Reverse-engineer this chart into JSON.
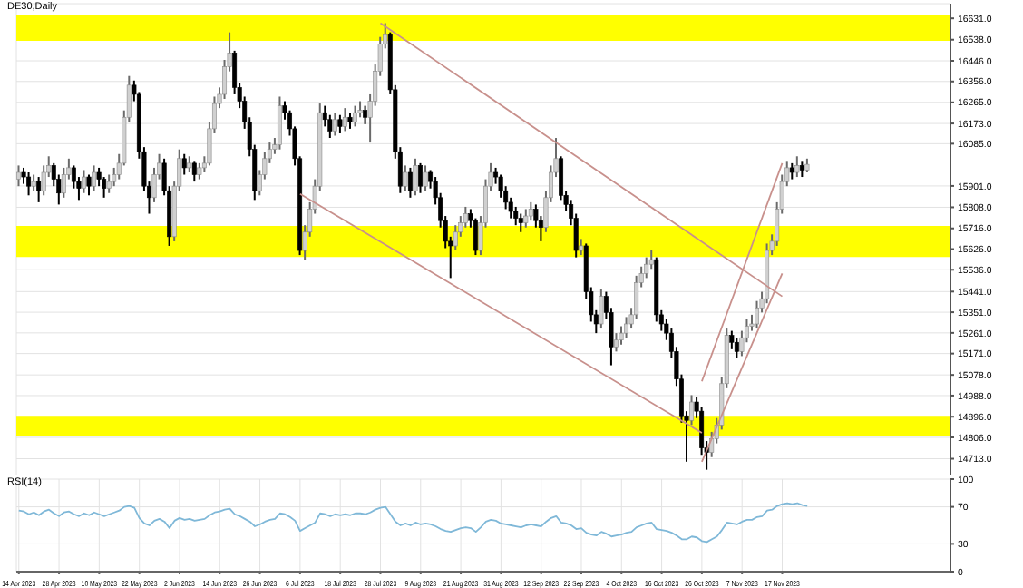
{
  "chart_data": [
    {
      "type": "candlestick",
      "title": "DE30,Daily",
      "categories": [
        "14 Apr 2023",
        null,
        null,
        null,
        null,
        null,
        null,
        null,
        "28 Apr 2023",
        null,
        null,
        null,
        null,
        null,
        null,
        null,
        "10 May 2023",
        null,
        null,
        null,
        null,
        null,
        null,
        null,
        "22 May 2023",
        null,
        null,
        null,
        null,
        null,
        null,
        null,
        "2 Jun 2023",
        null,
        null,
        null,
        null,
        null,
        null,
        null,
        "14 Jun 2023",
        null,
        null,
        null,
        null,
        null,
        null,
        null,
        "26 Jun 2023",
        null,
        null,
        null,
        null,
        null,
        null,
        null,
        "6 Jul 2023",
        null,
        null,
        null,
        null,
        null,
        null,
        null,
        "18 Jul 2023",
        null,
        null,
        null,
        null,
        null,
        null,
        null,
        "28 Jul 2023",
        null,
        null,
        null,
        null,
        null,
        null,
        null,
        "9 Aug 2023",
        null,
        null,
        null,
        null,
        null,
        null,
        null,
        "21 Aug 2023",
        null,
        null,
        null,
        null,
        null,
        null,
        null,
        "31 Aug 2023",
        null,
        null,
        null,
        null,
        null,
        null,
        null,
        "12 Sep 2023",
        null,
        null,
        null,
        null,
        null,
        null,
        null,
        "22 Sep 2023",
        null,
        null,
        null,
        null,
        null,
        null,
        null,
        "4 Oct 2023",
        null,
        null,
        null,
        null,
        null,
        null,
        null,
        "16 Oct 2023",
        null,
        null,
        null,
        null,
        null,
        null,
        null,
        "26 Oct 2023",
        null,
        null,
        null,
        null,
        null,
        null,
        null,
        "7 Nov 2023",
        null,
        null,
        null,
        null,
        null,
        null,
        null,
        "17 Nov 2023",
        null,
        null,
        null,
        null,
        null,
        null,
        null,
        null,
        null,
        null,
        null,
        null,
        null,
        null,
        null,
        null,
        null,
        null,
        null,
        null,
        null,
        null,
        null,
        null,
        null,
        null,
        null,
        null,
        null,
        null,
        null,
        null,
        null
      ],
      "ohlc": [
        [
          15930,
          15990,
          15900,
          15960
        ],
        [
          15960,
          15980,
          15910,
          15940
        ],
        [
          15940,
          15960,
          15860,
          15900
        ],
        [
          15900,
          15950,
          15880,
          15920
        ],
        [
          15920,
          15940,
          15830,
          15880
        ],
        [
          15880,
          15990,
          15860,
          15960
        ],
        [
          15960,
          16030,
          15940,
          15990
        ],
        [
          15990,
          16000,
          15900,
          15930
        ],
        [
          15930,
          15950,
          15820,
          15870
        ],
        [
          15870,
          15980,
          15850,
          15950
        ],
        [
          15950,
          16020,
          15930,
          15980
        ],
        [
          15980,
          15990,
          15890,
          15920
        ],
        [
          15920,
          15940,
          15840,
          15890
        ],
        [
          15890,
          15970,
          15870,
          15940
        ],
        [
          15940,
          15950,
          15860,
          15900
        ],
        [
          15900,
          15990,
          15880,
          15960
        ],
        [
          15960,
          15980,
          15900,
          15930
        ],
        [
          15930,
          15940,
          15850,
          15890
        ],
        [
          15890,
          15950,
          15870,
          15920
        ],
        [
          15920,
          15980,
          15900,
          15950
        ],
        [
          15950,
          16040,
          15930,
          16000
        ],
        [
          16000,
          16230,
          15990,
          16200
        ],
        [
          16200,
          16380,
          16180,
          16340
        ],
        [
          16340,
          16360,
          16270,
          16300
        ],
        [
          16300,
          16310,
          16020,
          16050
        ],
        [
          16050,
          16070,
          15880,
          15900
        ],
        [
          15900,
          15920,
          15780,
          15850
        ],
        [
          15850,
          15980,
          15830,
          15950
        ],
        [
          15950,
          16040,
          15930,
          16000
        ],
        [
          16000,
          16020,
          15860,
          15880
        ],
        [
          15880,
          15900,
          15640,
          15680
        ],
        [
          15680,
          15920,
          15660,
          15900
        ],
        [
          15900,
          16060,
          15880,
          16020
        ],
        [
          16020,
          16040,
          15950,
          15980
        ],
        [
          15980,
          16030,
          15960,
          16000
        ],
        [
          16000,
          16010,
          15920,
          15950
        ],
        [
          15950,
          16000,
          15930,
          15980
        ],
        [
          15980,
          16030,
          15960,
          16000
        ],
        [
          16000,
          16180,
          15990,
          16150
        ],
        [
          16150,
          16290,
          16130,
          16260
        ],
        [
          16260,
          16330,
          16240,
          16300
        ],
        [
          16300,
          16450,
          16280,
          16420
        ],
        [
          16420,
          16570,
          16400,
          16480
        ],
        [
          16480,
          16490,
          16300,
          16330
        ],
        [
          16330,
          16350,
          16240,
          16270
        ],
        [
          16270,
          16290,
          16150,
          16180
        ],
        [
          16180,
          16200,
          16030,
          16060
        ],
        [
          16060,
          16080,
          15840,
          15880
        ],
        [
          15880,
          15970,
          15860,
          15950
        ],
        [
          15950,
          16050,
          15930,
          16020
        ],
        [
          16020,
          16090,
          16000,
          16060
        ],
        [
          16060,
          16110,
          16040,
          16080
        ],
        [
          16080,
          16290,
          16060,
          16250
        ],
        [
          16250,
          16270,
          16190,
          16220
        ],
        [
          16220,
          16230,
          16120,
          16150
        ],
        [
          16150,
          16160,
          15990,
          16020
        ],
        [
          16020,
          16030,
          15600,
          15620
        ],
        [
          15620,
          15730,
          15580,
          15700
        ],
        [
          15700,
          15830,
          15680,
          15800
        ],
        [
          15800,
          15930,
          15780,
          15900
        ],
        [
          15900,
          16260,
          15880,
          16220
        ],
        [
          16220,
          16250,
          16160,
          16190
        ],
        [
          16190,
          16210,
          16110,
          16140
        ],
        [
          16140,
          16220,
          16120,
          16190
        ],
        [
          16190,
          16210,
          16130,
          16160
        ],
        [
          16160,
          16240,
          16140,
          16200
        ],
        [
          16200,
          16220,
          16150,
          16180
        ],
        [
          16180,
          16250,
          16160,
          16220
        ],
        [
          16220,
          16270,
          16200,
          16230
        ],
        [
          16230,
          16250,
          16170,
          16200
        ],
        [
          16200,
          16300,
          16090,
          16270
        ],
        [
          16270,
          16430,
          16250,
          16400
        ],
        [
          16400,
          16550,
          16380,
          16520
        ],
        [
          16520,
          16610,
          16500,
          16560
        ],
        [
          16560,
          16570,
          16300,
          16320
        ],
        [
          16320,
          16340,
          16020,
          16050
        ],
        [
          16050,
          16070,
          15870,
          15900
        ],
        [
          15900,
          15990,
          15880,
          15960
        ],
        [
          15960,
          15980,
          15850,
          15880
        ],
        [
          15880,
          16020,
          15860,
          15990
        ],
        [
          15990,
          16000,
          15870,
          15900
        ],
        [
          15900,
          15990,
          15880,
          15960
        ],
        [
          15960,
          15970,
          15890,
          15920
        ],
        [
          15920,
          15940,
          15820,
          15850
        ],
        [
          15850,
          15870,
          15720,
          15750
        ],
        [
          15750,
          15770,
          15630,
          15660
        ],
        [
          15660,
          15680,
          15500,
          15640
        ],
        [
          15640,
          15730,
          15620,
          15700
        ],
        [
          15700,
          15770,
          15680,
          15740
        ],
        [
          15740,
          15810,
          15720,
          15780
        ],
        [
          15780,
          15800,
          15720,
          15750
        ],
        [
          15750,
          15760,
          15600,
          15620
        ],
        [
          15620,
          15770,
          15600,
          15740
        ],
        [
          15740,
          15930,
          15720,
          15900
        ],
        [
          15900,
          16000,
          15880,
          15960
        ],
        [
          15960,
          15980,
          15910,
          15940
        ],
        [
          15940,
          15950,
          15850,
          15880
        ],
        [
          15880,
          15900,
          15800,
          15830
        ],
        [
          15830,
          15850,
          15760,
          15790
        ],
        [
          15790,
          15810,
          15730,
          15760
        ],
        [
          15760,
          15780,
          15700,
          15740
        ],
        [
          15740,
          15800,
          15720,
          15770
        ],
        [
          15770,
          15830,
          15750,
          15800
        ],
        [
          15800,
          15820,
          15720,
          15750
        ],
        [
          15750,
          15770,
          15660,
          15720
        ],
        [
          15720,
          15880,
          15700,
          15850
        ],
        [
          15850,
          15990,
          15830,
          15960
        ],
        [
          15960,
          16110,
          15940,
          16020
        ],
        [
          16020,
          16030,
          15840,
          15860
        ],
        [
          15860,
          15880,
          15790,
          15820
        ],
        [
          15820,
          15840,
          15730,
          15760
        ],
        [
          15760,
          15780,
          15590,
          15620
        ],
        [
          15620,
          15670,
          15600,
          15640
        ],
        [
          15640,
          15650,
          15410,
          15440
        ],
        [
          15440,
          15460,
          15310,
          15340
        ],
        [
          15340,
          15360,
          15260,
          15300
        ],
        [
          15300,
          15450,
          15280,
          15420
        ],
        [
          15420,
          15440,
          15320,
          15350
        ],
        [
          15350,
          15370,
          15120,
          15200
        ],
        [
          15200,
          15260,
          15180,
          15230
        ],
        [
          15230,
          15290,
          15210,
          15260
        ],
        [
          15260,
          15330,
          15240,
          15300
        ],
        [
          15300,
          15370,
          15280,
          15340
        ],
        [
          15340,
          15510,
          15320,
          15480
        ],
        [
          15480,
          15550,
          15460,
          15520
        ],
        [
          15520,
          15590,
          15500,
          15560
        ],
        [
          15560,
          15620,
          15540,
          15580
        ],
        [
          15580,
          15590,
          15310,
          15340
        ],
        [
          15340,
          15360,
          15270,
          15300
        ],
        [
          15300,
          15320,
          15230,
          15260
        ],
        [
          15260,
          15280,
          15150,
          15180
        ],
        [
          15180,
          15200,
          15030,
          15060
        ],
        [
          15060,
          15080,
          14870,
          14900
        ],
        [
          14900,
          14920,
          14700,
          14880
        ],
        [
          14880,
          14990,
          14860,
          14960
        ],
        [
          14960,
          14980,
          14890,
          14920
        ],
        [
          14920,
          14940,
          14730,
          14760
        ],
        [
          14760,
          14790,
          14665,
          14740
        ],
        [
          14740,
          14830,
          14720,
          14800
        ],
        [
          14800,
          14890,
          14780,
          14860
        ],
        [
          14860,
          15070,
          14840,
          15040
        ],
        [
          15040,
          15280,
          15020,
          15250
        ],
        [
          15250,
          15270,
          15190,
          15220
        ],
        [
          15220,
          15240,
          15150,
          15180
        ],
        [
          15180,
          15270,
          15160,
          15240
        ],
        [
          15240,
          15320,
          15220,
          15290
        ],
        [
          15290,
          15340,
          15270,
          15300
        ],
        [
          15300,
          15400,
          15280,
          15370
        ],
        [
          15370,
          15440,
          15350,
          15410
        ],
        [
          15410,
          15650,
          15390,
          15620
        ],
        [
          15620,
          15690,
          15600,
          15660
        ],
        [
          15660,
          15830,
          15640,
          15800
        ],
        [
          15800,
          15950,
          15780,
          15920
        ],
        [
          15920,
          16010,
          15900,
          15980
        ],
        [
          15980,
          16000,
          15930,
          15960
        ],
        [
          15960,
          16030,
          15940,
          15990
        ],
        [
          15990,
          16010,
          15940,
          15970
        ],
        [
          15970,
          16020,
          15960,
          15995
        ],
        null,
        null,
        null,
        null,
        null,
        null,
        null,
        null,
        null,
        null,
        null,
        null,
        null,
        null,
        null,
        null,
        null,
        null,
        null,
        null,
        null,
        null,
        null,
        null,
        null,
        null,
        null,
        null
      ],
      "series": [
        {
          "type": "line",
          "color": "#c8908c",
          "x": [
            "28 Jul 2023",
            "17 Nov 2023"
          ],
          "values": [
            16610,
            15420
          ]
        },
        {
          "type": "line",
          "color": "#c8908c",
          "x": [
            "6 Jul 2023",
            "26 Oct 2023"
          ],
          "values": [
            15866,
            14826
          ]
        },
        {
          "type": "line",
          "color": "#c8908c",
          "x": [
            "26 Oct 2023",
            "17 Nov 2023"
          ],
          "values": [
            15050,
            16000
          ]
        },
        {
          "type": "line",
          "color": "#c8908c",
          "x": [
            "26 Oct 2023",
            "17 Nov 2023"
          ],
          "values": [
            14700,
            15520
          ]
        }
      ],
      "bands": [
        {
          "axis": "y",
          "from": 16533,
          "to": 16648,
          "color": "#ffff00"
        },
        {
          "axis": "y",
          "from": 15591,
          "to": 15727,
          "color": "#ffff00"
        },
        {
          "axis": "y",
          "from": 14814,
          "to": 14900,
          "color": "#ffff00"
        }
      ],
      "ylim": [
        14640,
        16695
      ],
      "yticks": [
        {
          "value": 14713,
          "label": "14713.0"
        },
        {
          "value": 14806,
          "label": "14806.0"
        },
        {
          "value": 14896,
          "label": "14896.0"
        },
        {
          "value": 14988,
          "label": "14988.0"
        },
        {
          "value": 15078,
          "label": "15078.0"
        },
        {
          "value": 15171,
          "label": "15171.0"
        },
        {
          "value": 15261,
          "label": "15261.0"
        },
        {
          "value": 15351,
          "label": "15351.0"
        },
        {
          "value": 15441,
          "label": "15441.0"
        },
        {
          "value": 15536,
          "label": "15536.0"
        },
        {
          "value": 15626,
          "label": "15626.0"
        },
        {
          "value": 15716,
          "label": "15716.0"
        },
        {
          "value": 15808,
          "label": "15808.0"
        },
        {
          "value": 15901,
          "label": "15901.0"
        },
        {
          "value": 16085,
          "label": "16085.0"
        },
        {
          "value": 16173,
          "label": "16173.0"
        },
        {
          "value": 16265,
          "label": "16265.0"
        },
        {
          "value": 16356,
          "label": "16356.0"
        },
        {
          "value": 16446,
          "label": "16446.0"
        },
        {
          "value": 16538,
          "label": "16538.0"
        },
        {
          "value": 16631,
          "label": "16631.0"
        }
      ],
      "grid": true,
      "tick_labels": "y"
    },
    {
      "type": "line",
      "title": "RSI(14)",
      "categories": [
        "14 Apr 2023",
        null,
        null,
        null,
        null,
        null,
        null,
        null,
        "28 Apr 2023",
        null,
        null,
        null,
        null,
        null,
        null,
        null,
        "10 May 2023",
        null,
        null,
        null,
        null,
        null,
        null,
        null,
        "22 May 2023",
        null,
        null,
        null,
        null,
        null,
        null,
        null,
        "2 Jun 2023",
        null,
        null,
        null,
        null,
        null,
        null,
        null,
        "14 Jun 2023",
        null,
        null,
        null,
        null,
        null,
        null,
        null,
        "26 Jun 2023",
        null,
        null,
        null,
        null,
        null,
        null,
        null,
        "6 Jul 2023",
        null,
        null,
        null,
        null,
        null,
        null,
        null,
        "18 Jul 2023",
        null,
        null,
        null,
        null,
        null,
        null,
        null,
        "28 Jul 2023",
        null,
        null,
        null,
        null,
        null,
        null,
        null,
        "9 Aug 2023",
        null,
        null,
        null,
        null,
        null,
        null,
        null,
        "21 Aug 2023",
        null,
        null,
        null,
        null,
        null,
        null,
        null,
        "31 Aug 2023",
        null,
        null,
        null,
        null,
        null,
        null,
        null,
        "12 Sep 2023",
        null,
        null,
        null,
        null,
        null,
        null,
        null,
        "22 Sep 2023",
        null,
        null,
        null,
        null,
        null,
        null,
        null,
        "4 Oct 2023",
        null,
        null,
        null,
        null,
        null,
        null,
        null,
        "16 Oct 2023",
        null,
        null,
        null,
        null,
        null,
        null,
        null,
        "26 Oct 2023",
        null,
        null,
        null,
        null,
        null,
        null,
        null,
        "7 Nov 2023",
        null,
        null,
        null,
        null,
        null,
        null,
        null,
        "17 Nov 2023",
        null,
        null,
        null,
        null,
        null,
        null,
        null,
        null,
        null,
        null,
        null,
        null,
        null,
        null,
        null,
        null,
        null,
        null,
        null,
        null,
        null,
        null,
        null,
        null,
        null,
        null,
        null,
        null,
        null,
        null,
        null,
        null,
        null
      ],
      "series": [
        {
          "color": "#7fb8d8",
          "values": [
            66,
            65,
            62,
            64,
            61,
            65,
            67,
            63,
            60,
            64,
            65,
            62,
            60,
            63,
            61,
            64,
            62,
            60,
            62,
            64,
            66,
            70,
            71,
            69,
            58,
            52,
            50,
            55,
            57,
            54,
            47,
            55,
            58,
            56,
            57,
            55,
            56,
            57,
            61,
            64,
            65,
            67,
            68,
            62,
            60,
            57,
            54,
            49,
            51,
            54,
            56,
            57,
            63,
            62,
            59,
            55,
            44,
            47,
            50,
            53,
            63,
            62,
            60,
            62,
            61,
            62,
            61,
            63,
            63,
            62,
            64,
            67,
            69,
            70,
            62,
            54,
            50,
            52,
            50,
            53,
            51,
            52,
            51,
            49,
            46,
            44,
            43,
            45,
            47,
            48,
            47,
            43,
            48,
            54,
            56,
            55,
            52,
            51,
            50,
            49,
            48,
            50,
            51,
            50,
            49,
            54,
            58,
            60,
            53,
            52,
            50,
            46,
            47,
            42,
            40,
            39,
            43,
            41,
            38,
            39,
            40,
            42,
            43,
            48,
            50,
            52,
            53,
            46,
            45,
            44,
            42,
            39,
            35,
            35,
            38,
            37,
            33,
            32,
            35,
            38,
            45,
            53,
            52,
            51,
            54,
            56,
            56,
            59,
            60,
            66,
            67,
            71,
            73,
            74,
            73,
            74,
            72,
            71,
            null,
            null,
            null,
            null,
            null,
            null,
            null,
            null,
            null,
            null,
            null,
            null,
            null,
            null,
            null,
            null,
            null,
            null,
            null,
            null,
            null,
            null,
            null,
            null,
            null,
            null,
            null,
            null
          ]
        }
      ],
      "ylim": [
        0,
        100
      ],
      "yticks": [
        0,
        30,
        70,
        100
      ],
      "grid": true
    }
  ]
}
